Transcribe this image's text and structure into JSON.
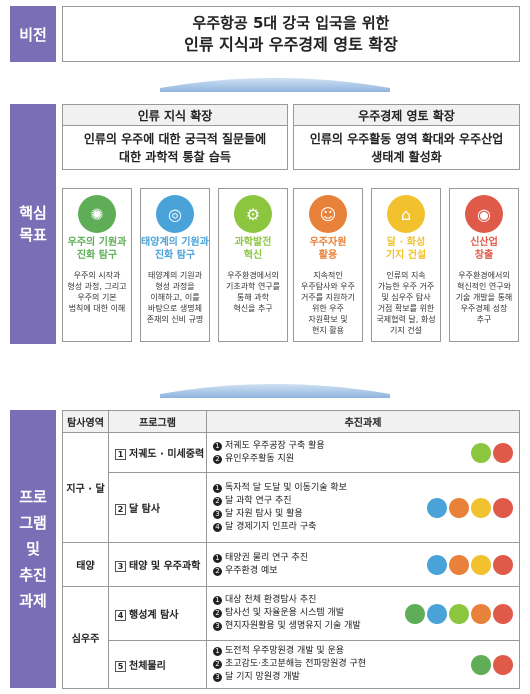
{
  "vision": {
    "label": "비전",
    "line1": "우주항공 5대 강국 입국을 위한",
    "line2": "인류 지식과 우주경제 영토 확장"
  },
  "goals": {
    "label_l1": "핵심",
    "label_l2": "목표",
    "left_head": "인류 지식 확장",
    "left_sub1": "인류의 우주에 대한 궁극적 질문들에",
    "left_sub2": "대한 과학적 통찰 습득",
    "right_head": "우주경제 영토 확장",
    "right_sub1": "인류의 우주활동 영역 확대와 우주산업",
    "right_sub2": "생태계 활성화",
    "items": [
      {
        "t1": "우주의 기원과",
        "t2": "진화 탐구",
        "d": [
          "우주의 시작과",
          "형성 과정, 그리고",
          "우주의 기본",
          "법칙에 대한 이해"
        ],
        "color": "#5fae57",
        "icon": "galaxy-icon"
      },
      {
        "t1": "태양계의 기원과",
        "t2": "진화 탐구",
        "d": [
          "태양계의 기원과",
          "형성 과정을",
          "이해하고, 이를",
          "바탕으로 생명체",
          "존재의 신비 규명"
        ],
        "color": "#4aa3d8",
        "icon": "solar-system-icon"
      },
      {
        "t1": "과학발전",
        "t2": "혁신",
        "d": [
          "우주환경에서의",
          "기초과학 연구를",
          "통해 과학",
          "혁신을 추구"
        ],
        "color": "#8cc63f",
        "icon": "gear-icon"
      },
      {
        "t1": "우주자원",
        "t2": "활용",
        "d": [
          "지속적인",
          "우주탐사와 우주",
          "거주를 지원하기",
          "위한 우주",
          "자원확보 및",
          "현지 활용"
        ],
        "color": "#e8823a",
        "icon": "astronaut-icon"
      },
      {
        "t1": "달 · 화성",
        "t2": "기지 건설",
        "d": [
          "인류의 지속",
          "가능한 우주 거주",
          "및 심우주 탐사",
          "거점 확보를 위한",
          "국제협력 달, 화성",
          "기지 건설"
        ],
        "color": "#f2c12e",
        "icon": "base-icon"
      },
      {
        "t1": "신산업",
        "t2": "창출",
        "d": [
          "우주환경에서의",
          "혁신적인 연구와",
          "기술 개발을 통해",
          "우주경제 성장",
          "추구"
        ],
        "color": "#e05a4a",
        "icon": "planet-icon"
      }
    ]
  },
  "programs": {
    "label": [
      "프로",
      "그램",
      "및",
      "추진",
      "과제"
    ],
    "headers": {
      "area": "탐사영역",
      "program": "프로그램",
      "tasks": "추진과제"
    },
    "rows": [
      {
        "area": "지구 · 달",
        "num": "1",
        "name": "저궤도 · 미세중력",
        "tasks": [
          "저궤도 우주공장 구축 활용",
          "유인우주활동 지원"
        ]
      },
      {
        "area": "",
        "num": "2",
        "name": "달 탐사",
        "tasks": [
          "독자적 달 도달 및 이동기술 확보",
          "달 과학 연구 추진",
          "달 자원 탐사 및 활용",
          "달 경제기지 인프라 구축"
        ]
      },
      {
        "area": "태양",
        "num": "3",
        "name": "태양 및 우주과학",
        "tasks": [
          "태양권 물리 연구 추진",
          "우주환경 예보"
        ]
      },
      {
        "area": "심우주",
        "num": "4",
        "name": "행성계 탐사",
        "tasks": [
          "대상 천체 환경탐사 추진",
          "탐사선 및 자율운용 시스템 개발",
          "현지자원활용 및 생명유지 기술 개발"
        ]
      },
      {
        "area": "",
        "num": "5",
        "name": "천체물리",
        "tasks": [
          "도전적 우주망원경 개발 및 운용",
          "초고감도·초고분해능 전파망원경 구현",
          "달 기지 망원경 개발"
        ]
      }
    ]
  }
}
